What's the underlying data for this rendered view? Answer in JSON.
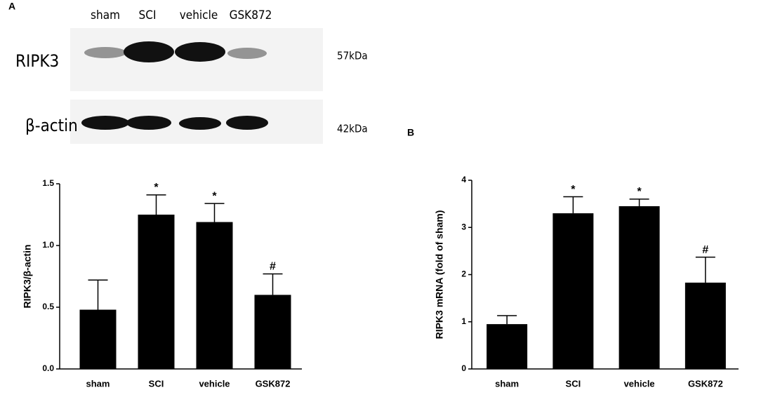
{
  "panels": [
    "A",
    "B"
  ],
  "blot": {
    "lanes": [
      "sham",
      "SCI",
      "vehicle",
      "GSK872"
    ],
    "rows": [
      {
        "protein": "RIPK3",
        "size": "57kDa"
      },
      {
        "protein": "β-actin",
        "size": "42kDa"
      }
    ]
  },
  "chart_data": [
    {
      "type": "bar",
      "y_label": "RIPK3/β-actin",
      "categories": [
        "sham",
        "SCI",
        "vehicle",
        "GSK872"
      ],
      "values": [
        0.48,
        1.25,
        1.19,
        0.6
      ],
      "errors": [
        0.24,
        0.16,
        0.15,
        0.17
      ],
      "annotations": [
        null,
        "*",
        "*",
        "#"
      ],
      "color": "#000000",
      "ylim": [
        0,
        1.5
      ],
      "yticks": [
        {
          "value": 0,
          "label": "0.0"
        },
        0.5,
        {
          "value": 1,
          "label": "1.0"
        },
        1.5
      ]
    },
    {
      "type": "bar",
      "y_label": "RIPK3 mRNA (fold of sham)",
      "categories": [
        "sham",
        "SCI",
        "vehicle",
        "GSK872"
      ],
      "values": [
        0.95,
        3.3,
        3.45,
        1.83
      ],
      "errors": [
        0.18,
        0.35,
        0.15,
        0.54
      ],
      "annotations": [
        null,
        "*",
        "*",
        "#"
      ],
      "color": "#000000",
      "ylim": [
        0,
        4
      ],
      "yticks": [
        0,
        1,
        2,
        3,
        4
      ]
    }
  ]
}
